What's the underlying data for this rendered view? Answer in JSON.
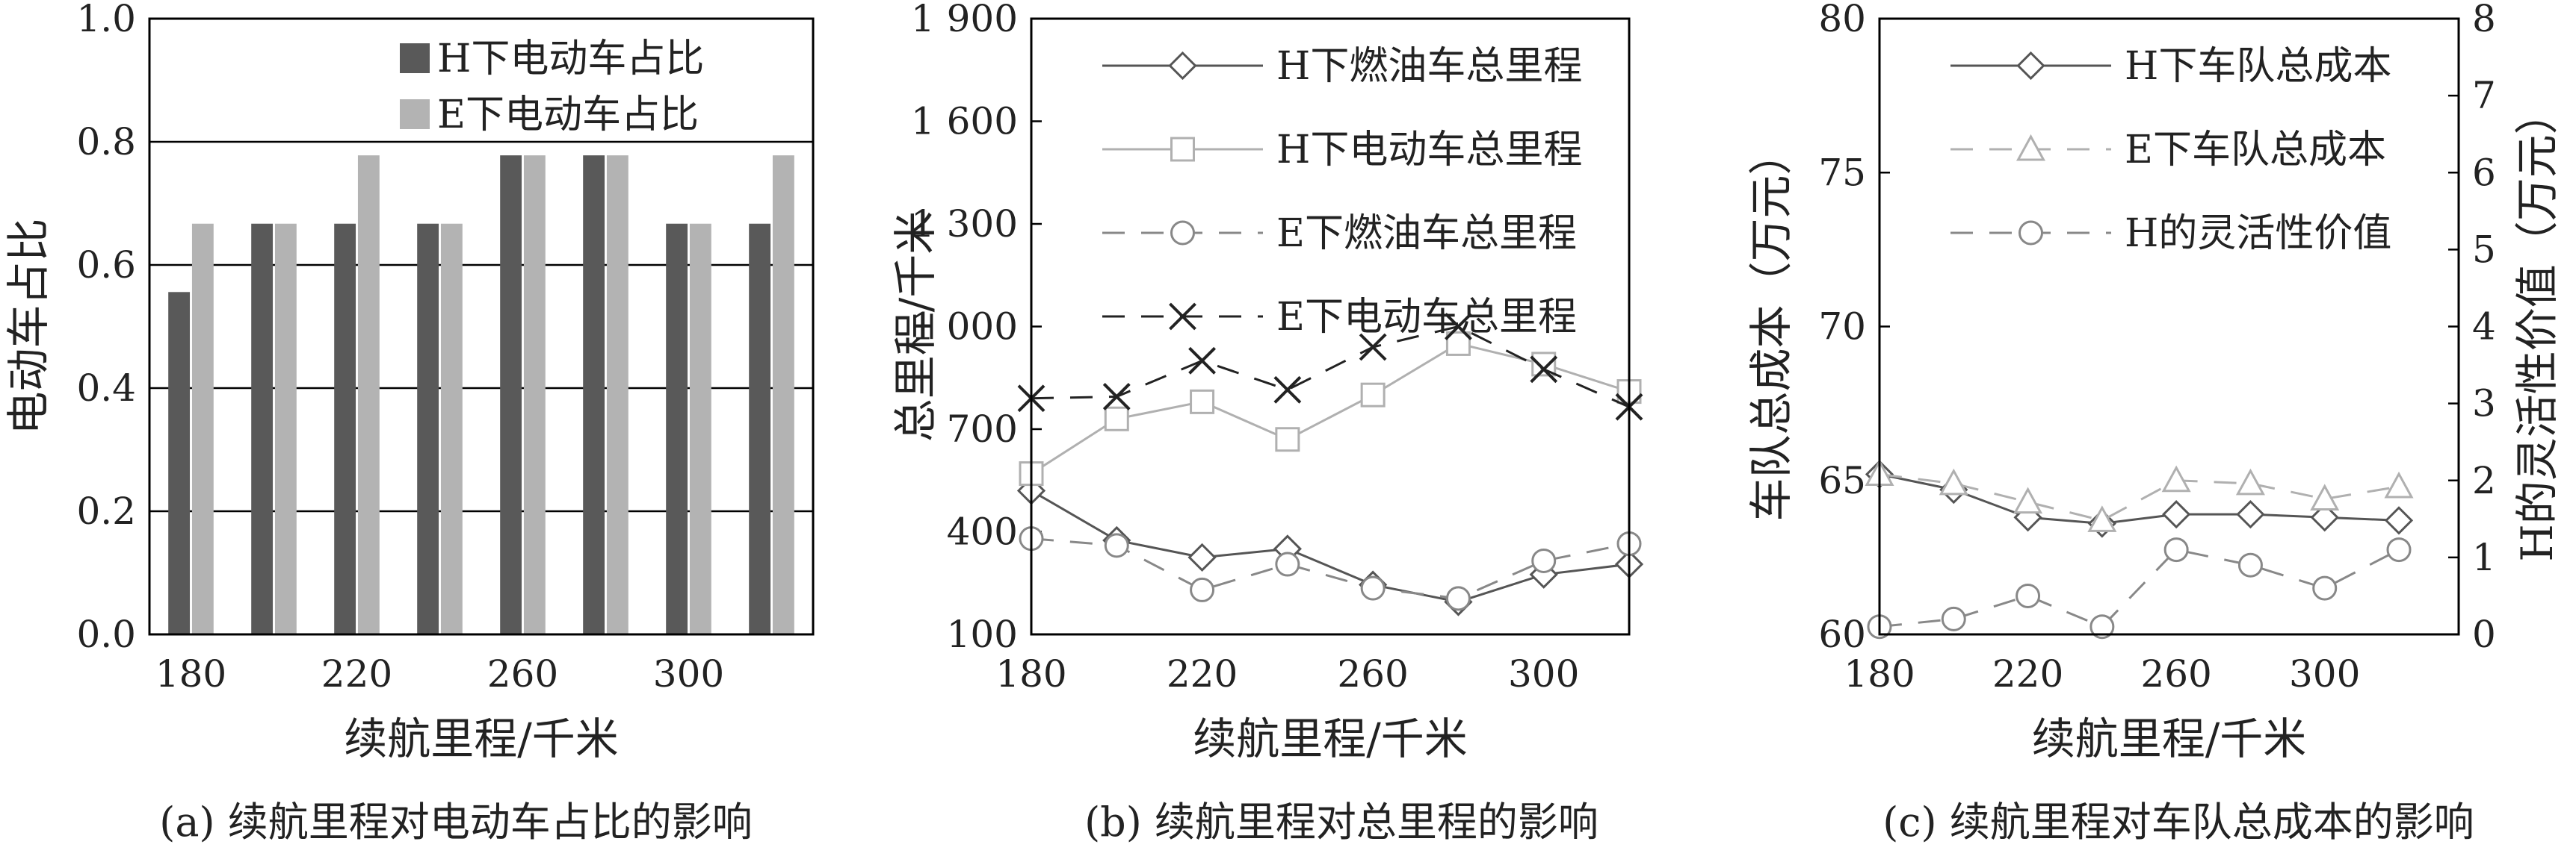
{
  "chart_data": [
    {
      "type": "bar",
      "caption": "(a) 续航里程对电动车占比的影响",
      "xlabel": "续航里程/千米",
      "ylabel": "电动车占比",
      "categories": [
        180,
        200,
        220,
        240,
        260,
        280,
        300,
        320
      ],
      "xtick_labels": [
        "180",
        "220",
        "260",
        "300"
      ],
      "ylim": [
        0.0,
        1.0
      ],
      "yticks": [
        "0.0",
        "0.2",
        "0.4",
        "0.6",
        "0.8",
        "1.0"
      ],
      "grid": "horizontal",
      "legend_position": "top-right",
      "series": [
        {
          "name": "H下电动车占比",
          "color": "#595959",
          "values": [
            0.556,
            0.667,
            0.667,
            0.667,
            0.778,
            0.778,
            0.667,
            0.667
          ]
        },
        {
          "name": "E下电动车占比",
          "color": "#b3b3b3",
          "values": [
            0.667,
            0.667,
            0.778,
            0.667,
            0.778,
            0.778,
            0.667,
            0.778
          ]
        }
      ]
    },
    {
      "type": "line",
      "caption": "(b) 续航里程对总里程的影响",
      "xlabel": "续航里程/千米",
      "ylabel": "总里程/千米",
      "x": [
        180,
        200,
        220,
        240,
        260,
        280,
        300,
        320
      ],
      "xtick_labels": [
        "180",
        "220",
        "260",
        "300"
      ],
      "ylim": [
        100,
        1900
      ],
      "yticks": [
        "100",
        "400",
        "700",
        "1 000",
        "1 300",
        "1 600",
        "1 900"
      ],
      "grid": "off",
      "legend_position": "top",
      "series": [
        {
          "name": "H下燃油车总里程",
          "color": "#555555",
          "marker": "diamond",
          "dash": "solid",
          "values": [
            520,
            375,
            325,
            350,
            245,
            195,
            275,
            305
          ]
        },
        {
          "name": "H下电动车总里程",
          "color": "#b0b0b0",
          "marker": "square",
          "dash": "solid",
          "values": [
            570,
            730,
            780,
            670,
            800,
            950,
            890,
            810
          ]
        },
        {
          "name": "E下燃油车总里程",
          "color": "#888888",
          "marker": "circle",
          "dash": "dashed",
          "values": [
            380,
            360,
            230,
            305,
            235,
            205,
            315,
            365
          ]
        },
        {
          "name": "E下电动车总里程",
          "color": "#222222",
          "marker": "x",
          "dash": "dashed",
          "values": [
            790,
            795,
            900,
            815,
            940,
            1000,
            875,
            765
          ]
        }
      ]
    },
    {
      "type": "line",
      "caption": "(c) 续航里程对车队总成本的影响",
      "xlabel": "续航里程/千米",
      "ylabel": "车队总成本（万元）",
      "y2label": "H的灵活性价值（万元）",
      "x": [
        180,
        200,
        220,
        240,
        260,
        280,
        300,
        320
      ],
      "xtick_labels": [
        "180",
        "220",
        "260",
        "300"
      ],
      "ylim": [
        60,
        80
      ],
      "yticks": [
        "60",
        "65",
        "70",
        "75",
        "80"
      ],
      "y2lim": [
        0,
        8
      ],
      "y2ticks": [
        "0",
        "1",
        "2",
        "3",
        "4",
        "5",
        "6",
        "7",
        "8"
      ],
      "grid": "off",
      "legend_position": "top",
      "series": [
        {
          "name": "H下车队总成本",
          "axis": "left",
          "color": "#555555",
          "marker": "diamond",
          "dash": "solid",
          "values": [
            65.2,
            64.7,
            63.8,
            63.6,
            63.9,
            63.9,
            63.8,
            63.7
          ]
        },
        {
          "name": "E下车队总成本",
          "axis": "left",
          "color": "#b0b0b0",
          "marker": "triangle",
          "dash": "dashed",
          "values": [
            65.2,
            64.9,
            64.3,
            63.7,
            65.0,
            64.9,
            64.4,
            64.8
          ]
        },
        {
          "name": "H的灵活性价值",
          "axis": "right",
          "color": "#888888",
          "marker": "circle",
          "dash": "dashed",
          "values": [
            0.1,
            0.2,
            0.5,
            0.1,
            1.1,
            0.9,
            0.6,
            1.1
          ]
        }
      ]
    }
  ]
}
